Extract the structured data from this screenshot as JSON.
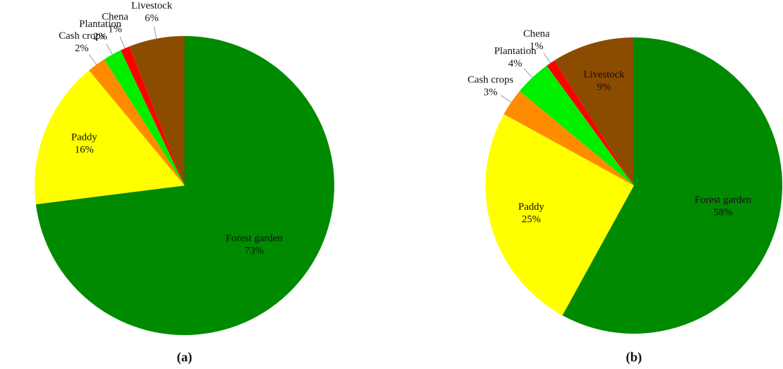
{
  "chart_data": [
    {
      "type": "pie",
      "caption": "(a)",
      "categories": [
        "Forest garden",
        "Paddy",
        "Cash crops",
        "Plantation",
        "Chena",
        "Livestock"
      ],
      "values": [
        73,
        16,
        2,
        2,
        1,
        6
      ],
      "value_labels": [
        "73%",
        "16%",
        "2%",
        "2%",
        "1%",
        "6%"
      ],
      "colors": [
        "#008a00",
        "#ffff00",
        "#ff8c00",
        "#00ee00",
        "#ff0000",
        "#8b4c00"
      ]
    },
    {
      "type": "pie",
      "caption": "(b)",
      "categories": [
        "Forest garden",
        "Paddy",
        "Cash crops",
        "Plantation",
        "Chena",
        "Livestock"
      ],
      "values": [
        58,
        25,
        3,
        4,
        1,
        9
      ],
      "value_labels": [
        "58%",
        "25%",
        "3%",
        "4%",
        "1%",
        "9%"
      ],
      "colors": [
        "#008a00",
        "#ffff00",
        "#ff8c00",
        "#00ee00",
        "#ff0000",
        "#8b4c00"
      ]
    }
  ]
}
